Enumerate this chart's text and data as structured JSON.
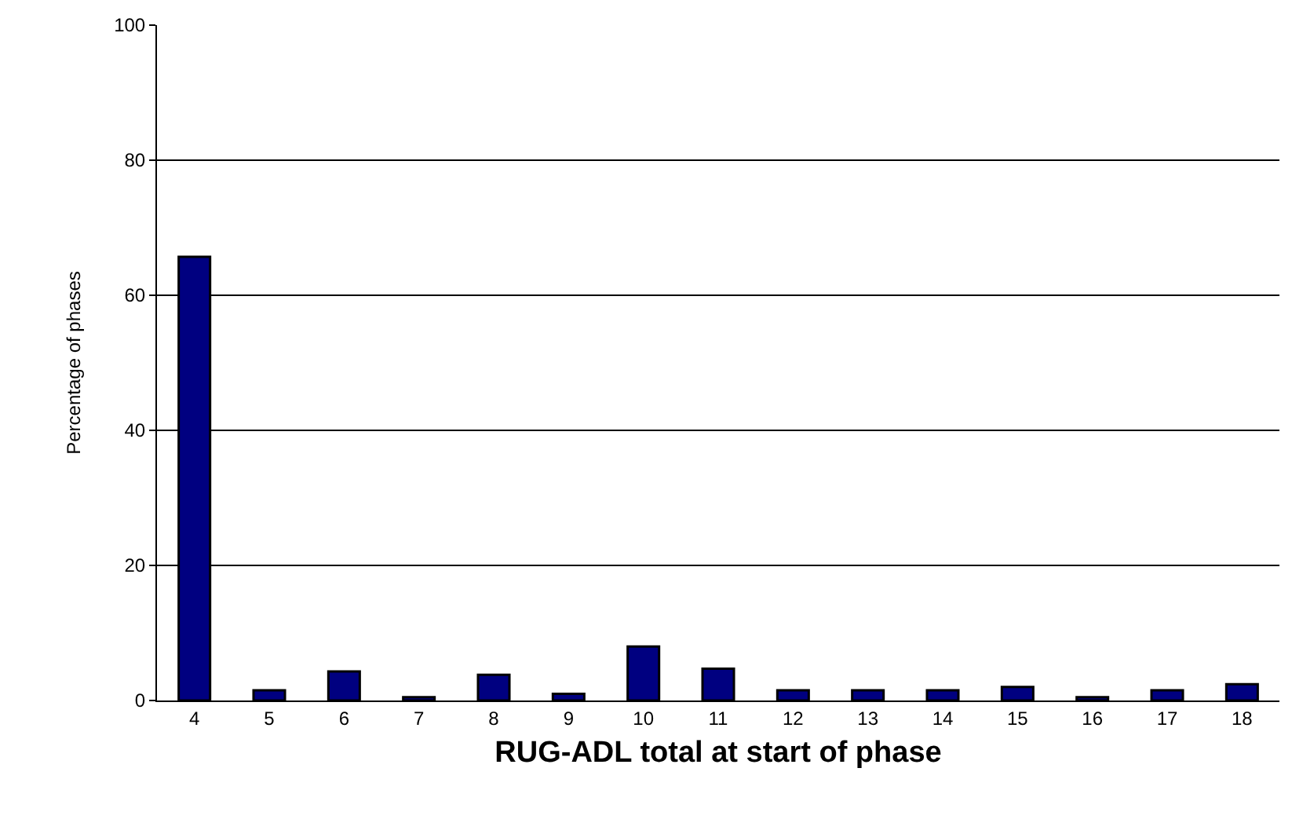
{
  "chart_data": {
    "type": "bar",
    "xlabel": "RUG-ADL total at start of phase",
    "ylabel": "Percentage of phases",
    "categories": [
      "4",
      "5",
      "6",
      "7",
      "8",
      "9",
      "10",
      "11",
      "12",
      "13",
      "14",
      "15",
      "16",
      "17",
      "18"
    ],
    "values": [
      65.7,
      1.5,
      4.3,
      0.5,
      3.8,
      1.0,
      8.0,
      4.7,
      1.5,
      1.5,
      1.5,
      2.0,
      0.5,
      1.5,
      2.4
    ],
    "color": "#000080",
    "ylim": [
      0,
      100
    ],
    "yticks": [
      0,
      20,
      40,
      60,
      80,
      100
    ],
    "grid": "y"
  }
}
